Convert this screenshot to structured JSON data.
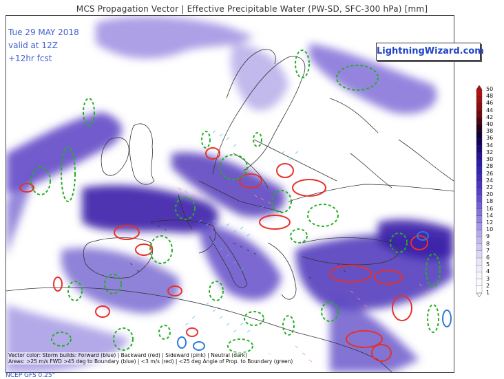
{
  "title": "MCS Propagation Vector | Effective Precipitable Water (PW-SD, SFC-300 hPa) [mm]",
  "info": {
    "date": "Tue 29 MAY 2018",
    "valid": "valid at 12Z",
    "fcst": "+12hr fcst"
  },
  "brand": "LightningWizard.com",
  "legend": {
    "line1": "Vector color: Storm builds: Forward (blue) | Backward (red) | Sideward (pink) | Neutral (dark)",
    "line2": "Areas: >25 m/s FWD >45 deg to Boundary (blue) | <3 m/s (red) | <25 deg Angle of Prop. to Boundary (green)"
  },
  "model": "NCEP GFS 0.25°",
  "colorbar": {
    "labels": [
      "50",
      "48",
      "46",
      "44",
      "42",
      "40",
      "38",
      "36",
      "34",
      "32",
      "30",
      "28",
      "26",
      "24",
      "22",
      "20",
      "18",
      "16",
      "14",
      "12",
      "10",
      "9",
      "8",
      "7",
      "6",
      "5",
      "4",
      "3",
      "2",
      "1"
    ],
    "colors": [
      "#b01010",
      "#a01010",
      "#8a0c10",
      "#6e0810",
      "#4c0410",
      "#24001a",
      "#0e0038",
      "#14005a",
      "#1c0878",
      "#241490",
      "#2a1ea6",
      "#3424b4",
      "#3e2cbc",
      "#4a36c2",
      "#5640c8",
      "#6450ce",
      "#7262d4",
      "#8274da",
      "#9286e0",
      "#a298e6",
      "#b2aaea",
      "#c0baee",
      "#cec8f2",
      "#dcd6f6",
      "#e8e4fa",
      "#f0eefc",
      "#f6f4fe",
      "#fafaff",
      "#ffffff",
      "#ffffff"
    ]
  }
}
